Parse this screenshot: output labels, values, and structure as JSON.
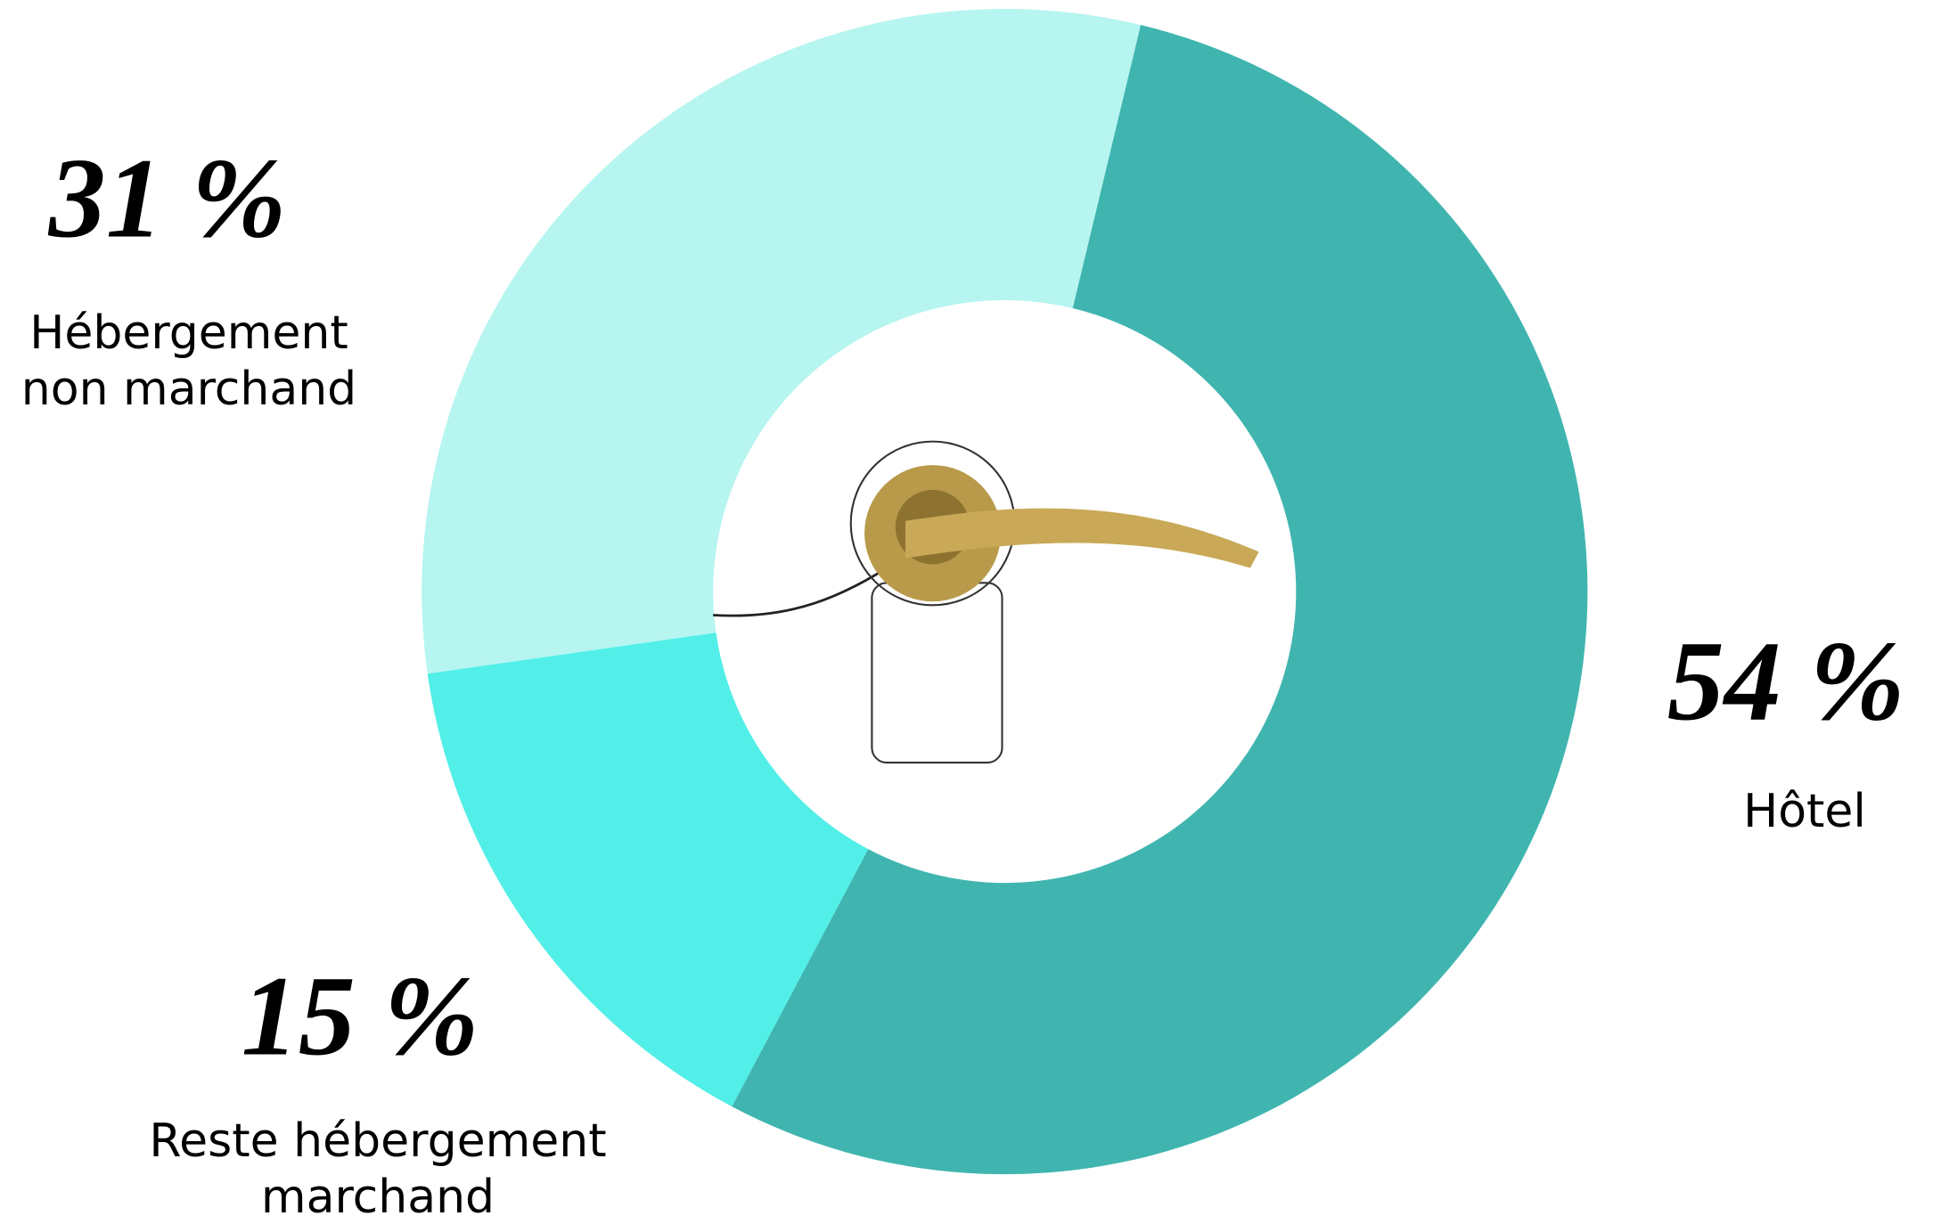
{
  "chart_data": {
    "type": "donut",
    "categories": [
      "Hôtel",
      "Reste hébergement marchand",
      "Hébergement non marchand"
    ],
    "values": [
      54,
      15,
      31
    ],
    "value_labels": [
      "54 %",
      "15 %",
      "31 %"
    ],
    "colors": [
      "#40b5b0",
      "#52efe8",
      "#b6f5f0"
    ]
  }
}
